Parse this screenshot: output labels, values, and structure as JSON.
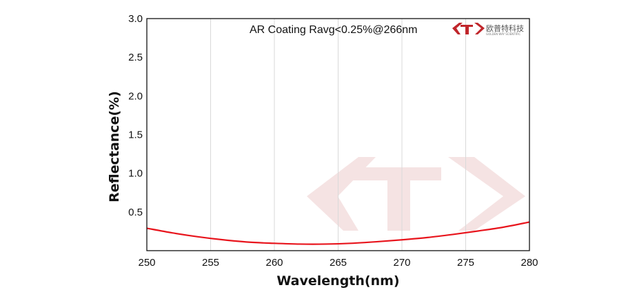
{
  "chart_data": {
    "type": "line",
    "title": "",
    "annotation": "AR Coating Ravg<0.25%@266nm",
    "xlabel": "Wavelength(nm)",
    "ylabel": "Reflectance(%)",
    "xlim": [
      250,
      280
    ],
    "ylim": [
      0,
      3.0
    ],
    "xticks": [
      "250",
      "255",
      "260",
      "265",
      "270",
      "275",
      "280"
    ],
    "yticks": [
      "0.5",
      "1.0",
      "1.5",
      "2.0",
      "2.5",
      "3.0"
    ],
    "grid": "vertical",
    "series": [
      {
        "color": "#e8141c",
        "x": [
          250,
          252,
          254,
          256,
          258,
          260,
          262,
          264,
          266,
          268,
          270,
          272,
          274,
          276,
          278,
          280
        ],
        "y": [
          0.29,
          0.23,
          0.18,
          0.14,
          0.11,
          0.095,
          0.085,
          0.085,
          0.095,
          0.115,
          0.14,
          0.17,
          0.21,
          0.255,
          0.305,
          0.37
        ]
      }
    ]
  },
  "logo": {
    "brand_cn": "欧普特科技",
    "brand_en": "GOLDEN WAY SCIENTIFIC",
    "color": "#c0262b"
  }
}
